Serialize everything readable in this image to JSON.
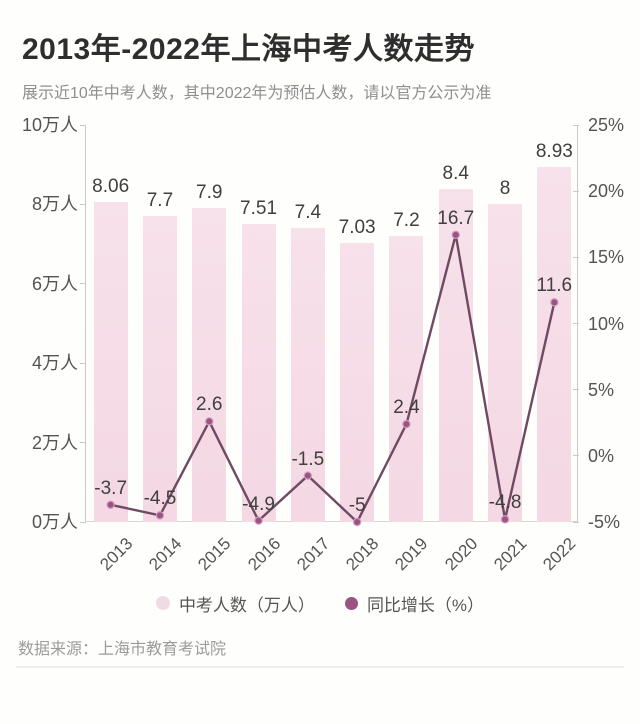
{
  "header": {
    "title": "2013年-2022年上海中考人数走势",
    "subtitle": "展示近10年中考人数，其中2022年为预估人数，请以官方公示为准"
  },
  "chart_data": {
    "type": "bar+line",
    "categories": [
      "2013",
      "2014",
      "2015",
      "2016",
      "2017",
      "2018",
      "2019",
      "2020",
      "2021",
      "2022"
    ],
    "series": [
      {
        "name": "中考人数（万人）",
        "type": "bar",
        "axis": "left",
        "values": [
          8.06,
          7.7,
          7.9,
          7.51,
          7.4,
          7.03,
          7.2,
          8.4,
          8,
          8.93
        ],
        "labels": [
          "8.06",
          "7.7",
          "7.9",
          "7.51",
          "7.4",
          "7.03",
          "7.2",
          "8.4",
          "8",
          "8.93"
        ],
        "color": "#f5dae5"
      },
      {
        "name": "同比增长（%）",
        "type": "line",
        "axis": "right",
        "values": [
          -3.7,
          -4.5,
          2.6,
          -4.9,
          -1.5,
          -5,
          2.4,
          16.7,
          -4.8,
          11.6
        ],
        "labels": [
          "-3.7",
          "-4.5",
          "2.6",
          "-4.9",
          "-1.5",
          "-5",
          "2.4",
          "16.7",
          "-4.8",
          "11.6"
        ],
        "line_color": "#6f4a62",
        "point_color": "#9b5383",
        "point_ring_color": "#cf9cbd"
      }
    ],
    "left_axis": {
      "range": [
        0,
        10
      ],
      "ticks": [
        0,
        2,
        4,
        6,
        8,
        10
      ],
      "labels": [
        "0万人",
        "2万人",
        "4万人",
        "6万人",
        "8万人",
        "10万人"
      ]
    },
    "right_axis": {
      "range": [
        -5,
        25
      ],
      "ticks": [
        -5,
        0,
        5,
        10,
        15,
        20,
        25
      ],
      "labels": [
        "-5%",
        "0%",
        "5%",
        "10%",
        "15%",
        "20%",
        "25%"
      ]
    },
    "legend_position": "bottom",
    "grid": false
  },
  "footer": {
    "source": "数据来源：上海市教育考试院"
  }
}
